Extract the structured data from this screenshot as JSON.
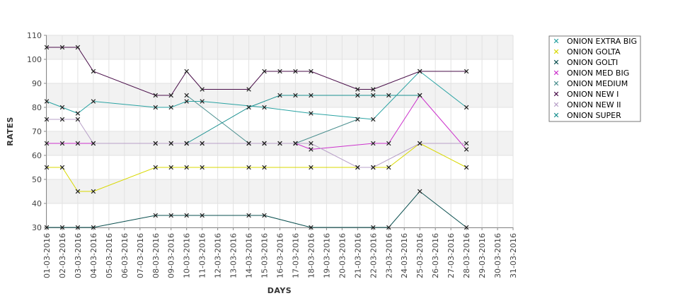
{
  "chart_data": {
    "type": "line",
    "xlabel": "DAYS",
    "ylabel": "RATES",
    "ylim": [
      30,
      110
    ],
    "yticks": [
      30,
      40,
      50,
      60,
      70,
      80,
      90,
      100,
      110
    ],
    "grid": true,
    "legend_position": "top-right",
    "categories": [
      "01-03-2016",
      "02-03-2016",
      "03-03-2016",
      "04-03-2016",
      "05-03-2016",
      "06-03-2016",
      "07-03-2016",
      "08-03-2016",
      "09-03-2016",
      "10-03-2016",
      "11-03-2016",
      "12-03-2016",
      "13-03-2016",
      "14-03-2016",
      "15-03-2016",
      "16-03-2016",
      "17-03-2016",
      "18-03-2016",
      "19-03-2016",
      "20-03-2016",
      "21-03-2016",
      "22-03-2016",
      "23-03-2016",
      "24-03-2016",
      "25-03-2016",
      "26-03-2016",
      "27-03-2016",
      "28-03-2016",
      "29-03-2016",
      "30-03-2016",
      "31-03-2016"
    ],
    "series": [
      {
        "name": "ONION EXTRA BIG",
        "color": "#2aa3a3",
        "values": [
          82.5,
          80,
          77.5,
          82.5,
          null,
          null,
          null,
          80,
          80,
          82.5,
          82.5,
          null,
          null,
          null,
          80,
          null,
          null,
          77.5,
          null,
          null,
          null,
          75,
          null,
          null,
          95,
          null,
          null,
          80,
          null,
          null,
          null
        ]
      },
      {
        "name": "ONION GOLTA",
        "color": "#d8d800",
        "values": [
          55,
          55,
          45,
          45,
          null,
          null,
          null,
          55,
          55,
          55,
          55,
          null,
          null,
          55,
          55,
          null,
          null,
          55,
          null,
          null,
          55,
          55,
          55,
          null,
          65,
          null,
          null,
          55,
          null,
          null,
          null
        ]
      },
      {
        "name": "ONION GOLTI",
        "color": "#0a4f4f",
        "values": [
          30,
          30,
          30,
          30,
          null,
          null,
          null,
          35,
          35,
          35,
          35,
          null,
          null,
          35,
          35,
          null,
          null,
          30,
          null,
          null,
          null,
          30,
          30,
          null,
          45,
          null,
          null,
          30,
          null,
          null,
          null
        ]
      },
      {
        "name": "ONION MED BIG",
        "color": "#cc33cc",
        "values": [
          65,
          65,
          65,
          65,
          null,
          null,
          null,
          65,
          65,
          65,
          65,
          null,
          null,
          65,
          65,
          65,
          65,
          62.5,
          null,
          null,
          null,
          65,
          65,
          null,
          85,
          null,
          null,
          62.5,
          null,
          null,
          null
        ]
      },
      {
        "name": "ONION MEDIUM",
        "color": "#4a8f8f",
        "values": [
          null,
          null,
          null,
          null,
          null,
          null,
          null,
          null,
          null,
          85,
          null,
          null,
          null,
          65,
          65,
          null,
          65,
          null,
          null,
          null,
          75,
          null,
          null,
          null,
          null,
          null,
          null,
          null,
          null,
          null,
          null
        ]
      },
      {
        "name": "ONION NEW I",
        "color": "#4a0f4a",
        "values": [
          105,
          105,
          105,
          95,
          null,
          null,
          null,
          85,
          85,
          95,
          87.5,
          null,
          null,
          87.5,
          95,
          95,
          95,
          95,
          null,
          null,
          87.5,
          87.5,
          null,
          null,
          95,
          null,
          null,
          95,
          null,
          null,
          null
        ]
      },
      {
        "name": "ONION NEW II",
        "color": "#b8a0c8",
        "values": [
          75,
          75,
          75,
          65,
          null,
          null,
          null,
          65,
          65,
          65,
          65,
          null,
          null,
          65,
          65,
          65,
          65,
          65,
          null,
          null,
          55,
          55,
          null,
          null,
          65,
          null,
          null,
          65,
          null,
          null,
          null
        ]
      },
      {
        "name": "ONION SUPER",
        "color": "#1a9090",
        "values": [
          null,
          null,
          null,
          null,
          null,
          null,
          null,
          null,
          null,
          65,
          null,
          null,
          null,
          80,
          null,
          85,
          85,
          85,
          null,
          null,
          85,
          85,
          85,
          null,
          85,
          null,
          null,
          null,
          null,
          null,
          null
        ]
      }
    ]
  }
}
